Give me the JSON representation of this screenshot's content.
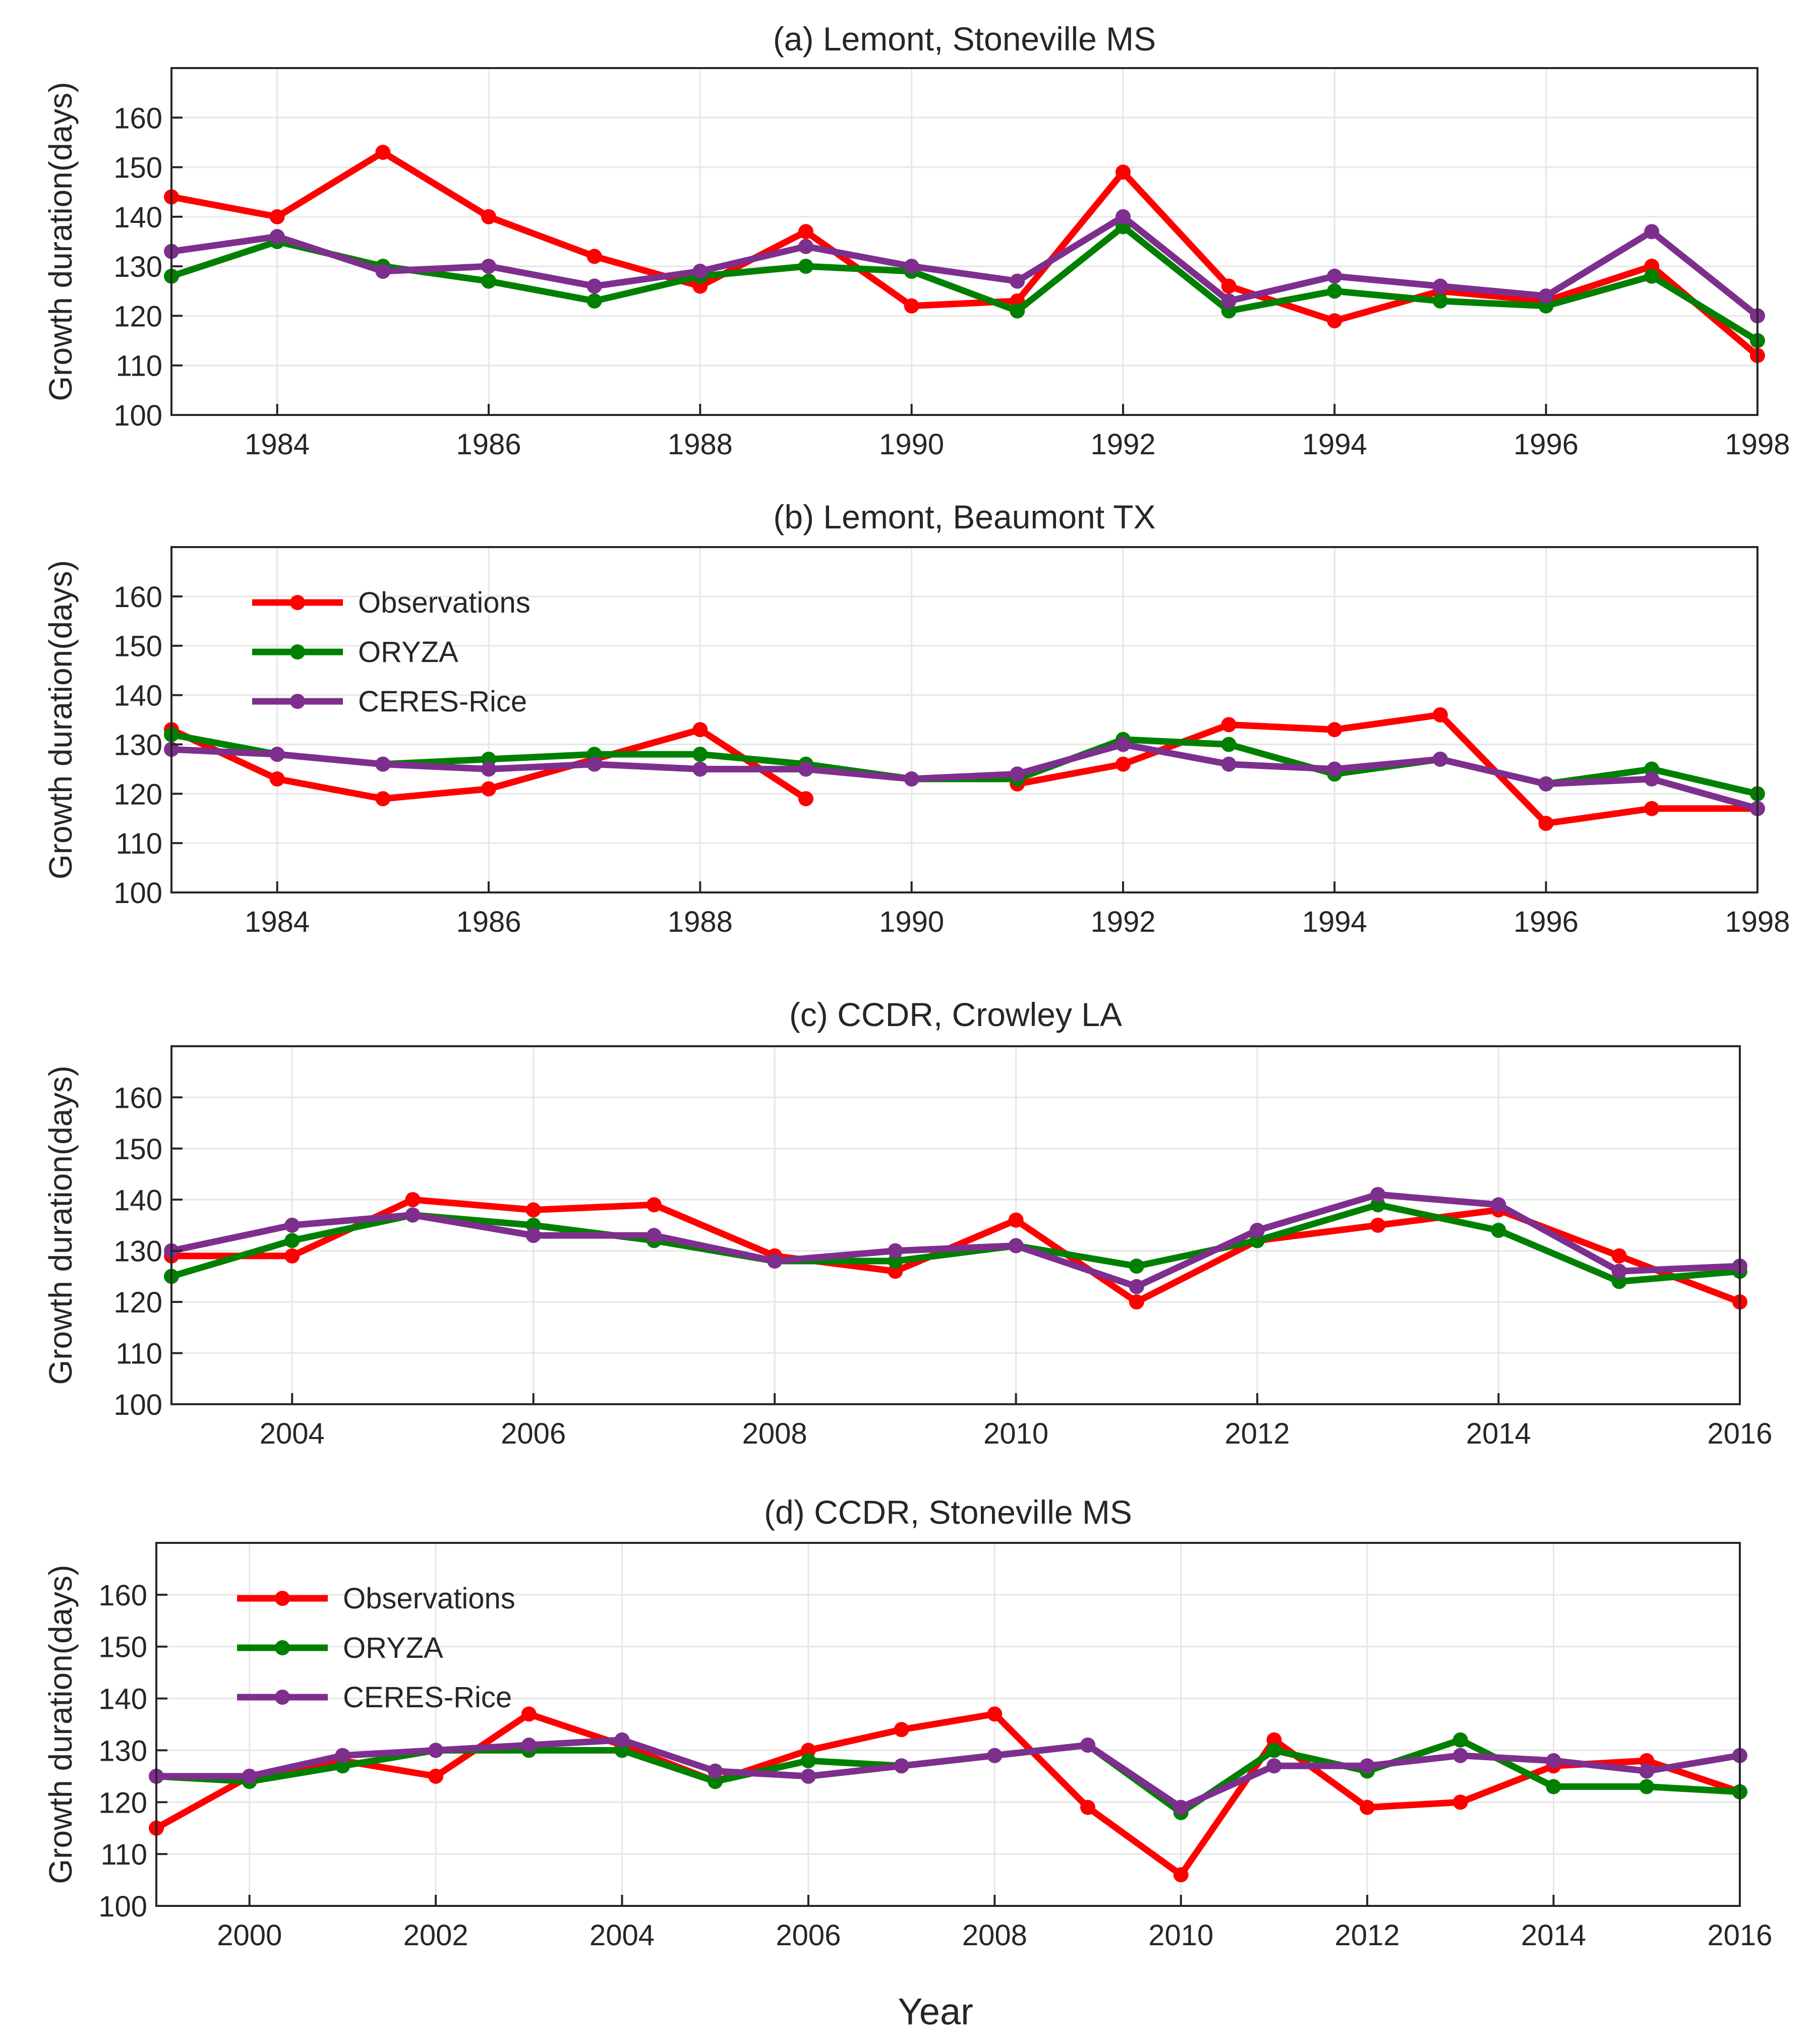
{
  "colors": {
    "observations": "#ff0000",
    "oryza": "#008000",
    "ceres": "#7e2f8e",
    "grid": "#e6e6e6",
    "axis": "#262626"
  },
  "figure": {
    "xlabel": "Year",
    "ylabel": "Growth duration(days)"
  },
  "chart_data": [
    {
      "type": "line",
      "title": "(a) Lemont, Stoneville MS",
      "xlabel": "",
      "ylabel": "Growth duration(days)",
      "xlim": [
        1983,
        1998
      ],
      "ylim": [
        100,
        170
      ],
      "xticks": [
        1984,
        1986,
        1988,
        1990,
        1992,
        1994,
        1996,
        1998
      ],
      "yticks": [
        100,
        110,
        120,
        130,
        140,
        150,
        160
      ],
      "grid": true,
      "legend": null,
      "x": [
        1983,
        1984,
        1985,
        1986,
        1987,
        1988,
        1989,
        1990,
        1991,
        1992,
        1993,
        1994,
        1995,
        1996,
        1997,
        1998
      ],
      "series": [
        {
          "name": "Observations",
          "key": "observations",
          "values": [
            144,
            140,
            153,
            140,
            132,
            126,
            137,
            122,
            123,
            149,
            126,
            119,
            125,
            123,
            130,
            112
          ]
        },
        {
          "name": "ORYZA",
          "key": "oryza",
          "values": [
            128,
            135,
            130,
            127,
            123,
            128,
            130,
            129,
            121,
            138,
            121,
            125,
            123,
            122,
            128,
            115
          ]
        },
        {
          "name": "CERES-Rice",
          "key": "ceres",
          "values": [
            133,
            136,
            129,
            130,
            126,
            129,
            134,
            130,
            127,
            140,
            123,
            128,
            126,
            124,
            137,
            120
          ]
        }
      ]
    },
    {
      "type": "line",
      "title": "(b) Lemont, Beaumont TX",
      "xlabel": "",
      "ylabel": "Growth duration(days)",
      "xlim": [
        1983,
        1998
      ],
      "ylim": [
        100,
        170
      ],
      "xticks": [
        1984,
        1986,
        1988,
        1990,
        1992,
        1994,
        1996,
        1998
      ],
      "yticks": [
        100,
        110,
        120,
        130,
        140,
        150,
        160
      ],
      "grid": true,
      "legend": "top-left",
      "x": [
        1983,
        1984,
        1985,
        1986,
        1987,
        1988,
        1989,
        1990,
        1991,
        1992,
        1993,
        1994,
        1995,
        1996,
        1997,
        1998
      ],
      "series": [
        {
          "name": "Observations",
          "key": "observations",
          "values": [
            133,
            123,
            119,
            121,
            127,
            133,
            119,
            null,
            122,
            126,
            134,
            133,
            136,
            114,
            117,
            117
          ]
        },
        {
          "name": "ORYZA",
          "key": "oryza",
          "values": [
            132,
            128,
            126,
            127,
            128,
            128,
            126,
            123,
            123,
            131,
            130,
            124,
            127,
            122,
            125,
            120
          ]
        },
        {
          "name": "CERES-Rice",
          "key": "ceres",
          "values": [
            129,
            128,
            126,
            125,
            126,
            125,
            125,
            123,
            124,
            130,
            126,
            125,
            127,
            122,
            123,
            117
          ]
        }
      ]
    },
    {
      "type": "line",
      "title": "(c) CCDR, Crowley LA",
      "xlabel": "",
      "ylabel": "Growth duration(days)",
      "xlim": [
        2003,
        2016
      ],
      "ylim": [
        100,
        170
      ],
      "xticks": [
        2004,
        2006,
        2008,
        2010,
        2012,
        2014,
        2016
      ],
      "yticks": [
        100,
        110,
        120,
        130,
        140,
        150,
        160
      ],
      "grid": true,
      "legend": null,
      "x": [
        2003,
        2004,
        2005,
        2006,
        2007,
        2008,
        2009,
        2010,
        2011,
        2012,
        2013,
        2014,
        2015,
        2016
      ],
      "series": [
        {
          "name": "Observations",
          "key": "observations",
          "values": [
            129,
            129,
            140,
            138,
            139,
            129,
            126,
            136,
            120,
            132,
            135,
            138,
            129,
            120
          ]
        },
        {
          "name": "ORYZA",
          "key": "oryza",
          "values": [
            125,
            132,
            137,
            135,
            132,
            128,
            128,
            131,
            127,
            132,
            139,
            134,
            124,
            126
          ]
        },
        {
          "name": "CERES-Rice",
          "key": "ceres",
          "values": [
            130,
            135,
            137,
            133,
            133,
            128,
            130,
            131,
            123,
            134,
            141,
            139,
            126,
            127
          ]
        }
      ]
    },
    {
      "type": "line",
      "title": "(d) CCDR, Stoneville MS",
      "xlabel": "Year",
      "ylabel": "Growth duration(days)",
      "xlim": [
        1999,
        2016
      ],
      "ylim": [
        100,
        170
      ],
      "xticks": [
        2000,
        2002,
        2004,
        2006,
        2008,
        2010,
        2012,
        2014,
        2016
      ],
      "yticks": [
        100,
        110,
        120,
        130,
        140,
        150,
        160
      ],
      "grid": true,
      "legend": "top-left",
      "x": [
        1999,
        2000,
        2001,
        2002,
        2003,
        2004,
        2005,
        2006,
        2007,
        2008,
        2009,
        2010,
        2011,
        2012,
        2013,
        2014,
        2015,
        2016
      ],
      "series": [
        {
          "name": "Observations",
          "key": "observations",
          "values": [
            115,
            125,
            128,
            125,
            137,
            131,
            124,
            130,
            134,
            137,
            119,
            106,
            132,
            119,
            120,
            127,
            128,
            122
          ]
        },
        {
          "name": "ORYZA",
          "key": "oryza",
          "values": [
            125,
            124,
            127,
            130,
            130,
            130,
            124,
            128,
            127,
            129,
            131,
            118,
            130,
            126,
            132,
            123,
            123,
            122
          ]
        },
        {
          "name": "CERES-Rice",
          "key": "ceres",
          "values": [
            125,
            125,
            129,
            130,
            131,
            132,
            126,
            125,
            127,
            129,
            131,
            119,
            127,
            127,
            129,
            128,
            126,
            129
          ]
        }
      ]
    }
  ]
}
